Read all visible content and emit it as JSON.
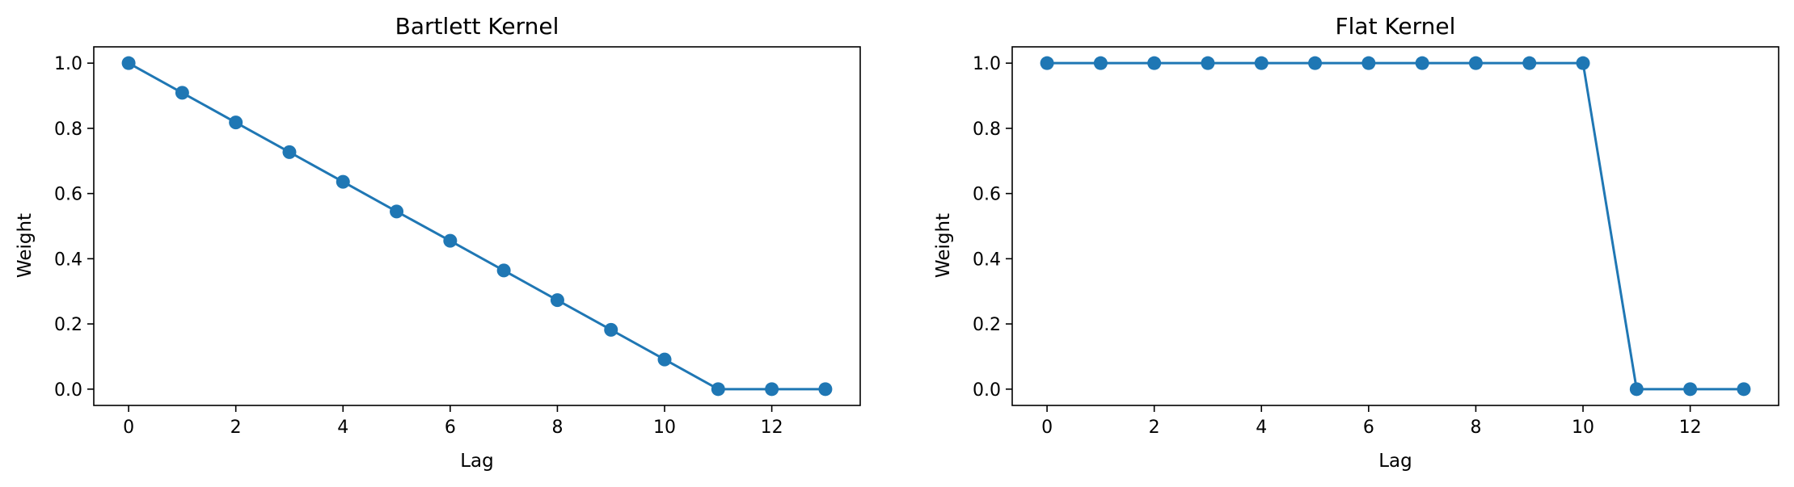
{
  "chart_data": [
    {
      "type": "line",
      "title": "Bartlett Kernel",
      "xlabel": "Lag",
      "ylabel": "Weight",
      "x": [
        0,
        1,
        2,
        3,
        4,
        5,
        6,
        7,
        8,
        9,
        10,
        11,
        12,
        13
      ],
      "series": [
        {
          "values": [
            1.0,
            0.909,
            0.818,
            0.727,
            0.636,
            0.545,
            0.455,
            0.364,
            0.273,
            0.182,
            0.091,
            0.0,
            0.0,
            0.0
          ]
        }
      ],
      "xlim": [
        -0.65,
        13.65
      ],
      "ylim": [
        -0.05,
        1.05
      ],
      "xticks": [
        0,
        2,
        4,
        6,
        8,
        10,
        12
      ],
      "yticks": [
        0.0,
        0.2,
        0.4,
        0.6,
        0.8,
        1.0
      ],
      "xtick_labels": [
        "0",
        "2",
        "4",
        "6",
        "8",
        "10",
        "12"
      ],
      "ytick_labels": [
        "0.0",
        "0.2",
        "0.4",
        "0.6",
        "0.8",
        "1.0"
      ],
      "color": "#1f77b4",
      "marker": "circle",
      "grid": false
    },
    {
      "type": "line",
      "title": "Flat Kernel",
      "xlabel": "Lag",
      "ylabel": "Weight",
      "x": [
        0,
        1,
        2,
        3,
        4,
        5,
        6,
        7,
        8,
        9,
        10,
        11,
        12,
        13
      ],
      "series": [
        {
          "values": [
            1,
            1,
            1,
            1,
            1,
            1,
            1,
            1,
            1,
            1,
            1,
            0,
            0,
            0
          ]
        }
      ],
      "xlim": [
        -0.65,
        13.65
      ],
      "ylim": [
        -0.05,
        1.05
      ],
      "xticks": [
        0,
        2,
        4,
        6,
        8,
        10,
        12
      ],
      "yticks": [
        0.0,
        0.2,
        0.4,
        0.6,
        0.8,
        1.0
      ],
      "xtick_labels": [
        "0",
        "2",
        "4",
        "6",
        "8",
        "10",
        "12"
      ],
      "ytick_labels": [
        "0.0",
        "0.2",
        "0.4",
        "0.6",
        "0.8",
        "1.0"
      ],
      "color": "#1f77b4",
      "marker": "circle",
      "grid": false
    }
  ]
}
